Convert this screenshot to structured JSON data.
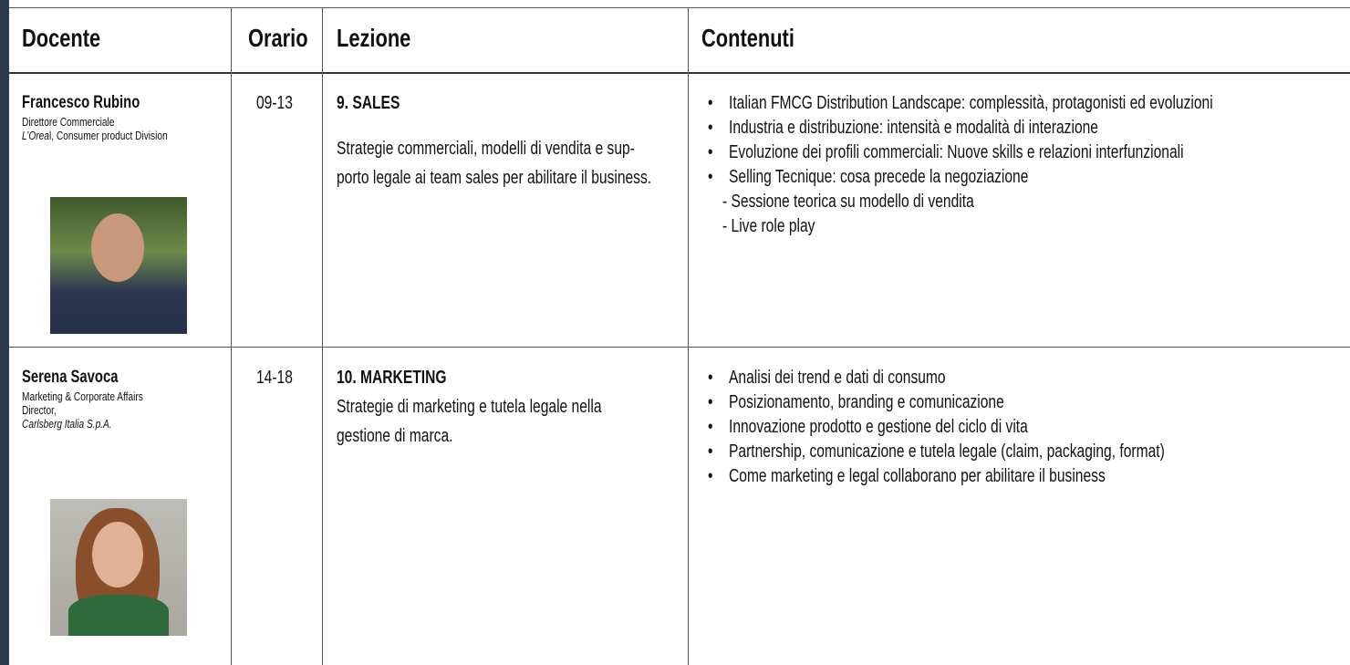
{
  "header": {
    "docente": "Docente",
    "orario": "Orario",
    "lezione": "Lezione",
    "contenuti": "Contenuti"
  },
  "rows": [
    {
      "docente": {
        "name": "Francesco Rubino",
        "role_lines": [
          "Direttore Commerciale"
        ],
        "company": [
          "L’Orea",
          "l, Consumer product Division"
        ]
      },
      "orario": "09-13",
      "lezione": {
        "title": "9. SALES",
        "lines": [
          "Strategie commerciali, modelli di vendita e sup-",
          "porto legale ai team sales per abilitare il business."
        ]
      },
      "contenuti": {
        "bullets": [
          "Italian FMCG Distribution Landscape: complessità, protagonisti ed evoluzioni",
          "Industria e distribuzione: intensità e modalità di interazione",
          "Evoluzione dei profili commerciali: Nuove skills e relazioni interfunzionali",
          "Selling Tecnique: cosa precede la negoziazione"
        ],
        "sub_items": [
          "- Sessione teorica su modello di vendita",
          "- Live role play"
        ]
      }
    },
    {
      "docente": {
        "name": "Serena Savoca",
        "role_lines": [
          "Marketing & Corporate Affairs",
          "Director,"
        ],
        "company": [
          "Carlsberg Italia S.p.A."
        ]
      },
      "orario": "14-18",
      "lezione": {
        "title": "10. MARKETING",
        "lines": [
          "Strategie di marketing e tutela legale nella",
          "gestione di marca."
        ]
      },
      "contenuti": {
        "bullets": [
          "Analisi dei trend e dati di consumo",
          "Posizionamento, branding e comunicazione",
          "Innovazione prodotto e gestione del ciclo di vita",
          "Partnership, comunicazione e tutela legale (claim, packaging, format)",
          "Come marketing e legal collaborano per abilitare il business"
        ],
        "sub_items": []
      }
    }
  ]
}
